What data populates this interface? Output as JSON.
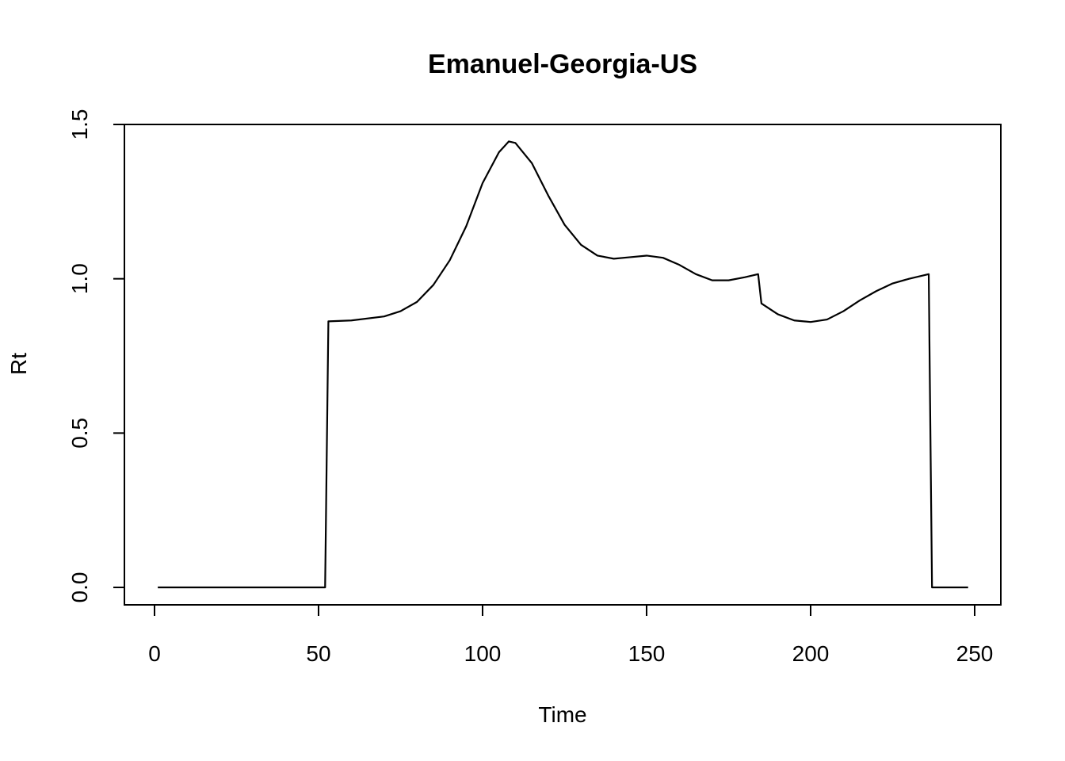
{
  "chart_data": {
    "type": "line",
    "title": "Emanuel-Georgia-US",
    "xlabel": "Time",
    "ylabel": "Rt",
    "xlim": [
      0,
      250
    ],
    "ylim": [
      0,
      1.5
    ],
    "xticks": [
      "0",
      "50",
      "100",
      "150",
      "200",
      "250"
    ],
    "yticks": [
      "0.0",
      "0.5",
      "1.0",
      "1.5"
    ],
    "grid": false,
    "series": [
      {
        "x": [
          1,
          52,
          53,
          60,
          70,
          75,
          80,
          85,
          90,
          95,
          100,
          105,
          108,
          110,
          115,
          120,
          125,
          130,
          135,
          140,
          145,
          150,
          155,
          160,
          165,
          170,
          175,
          180,
          184,
          185,
          190,
          195,
          200,
          205,
          210,
          215,
          220,
          225,
          230,
          236,
          237,
          248
        ],
        "y": [
          0,
          0,
          0.862,
          0.865,
          0.878,
          0.895,
          0.925,
          0.98,
          1.06,
          1.17,
          1.31,
          1.41,
          1.445,
          1.44,
          1.375,
          1.27,
          1.175,
          1.11,
          1.075,
          1.065,
          1.07,
          1.075,
          1.068,
          1.045,
          1.015,
          0.995,
          0.995,
          1.005,
          1.015,
          0.92,
          0.885,
          0.865,
          0.86,
          0.868,
          0.895,
          0.93,
          0.96,
          0.985,
          1.0,
          1.015,
          0,
          0
        ]
      }
    ]
  }
}
